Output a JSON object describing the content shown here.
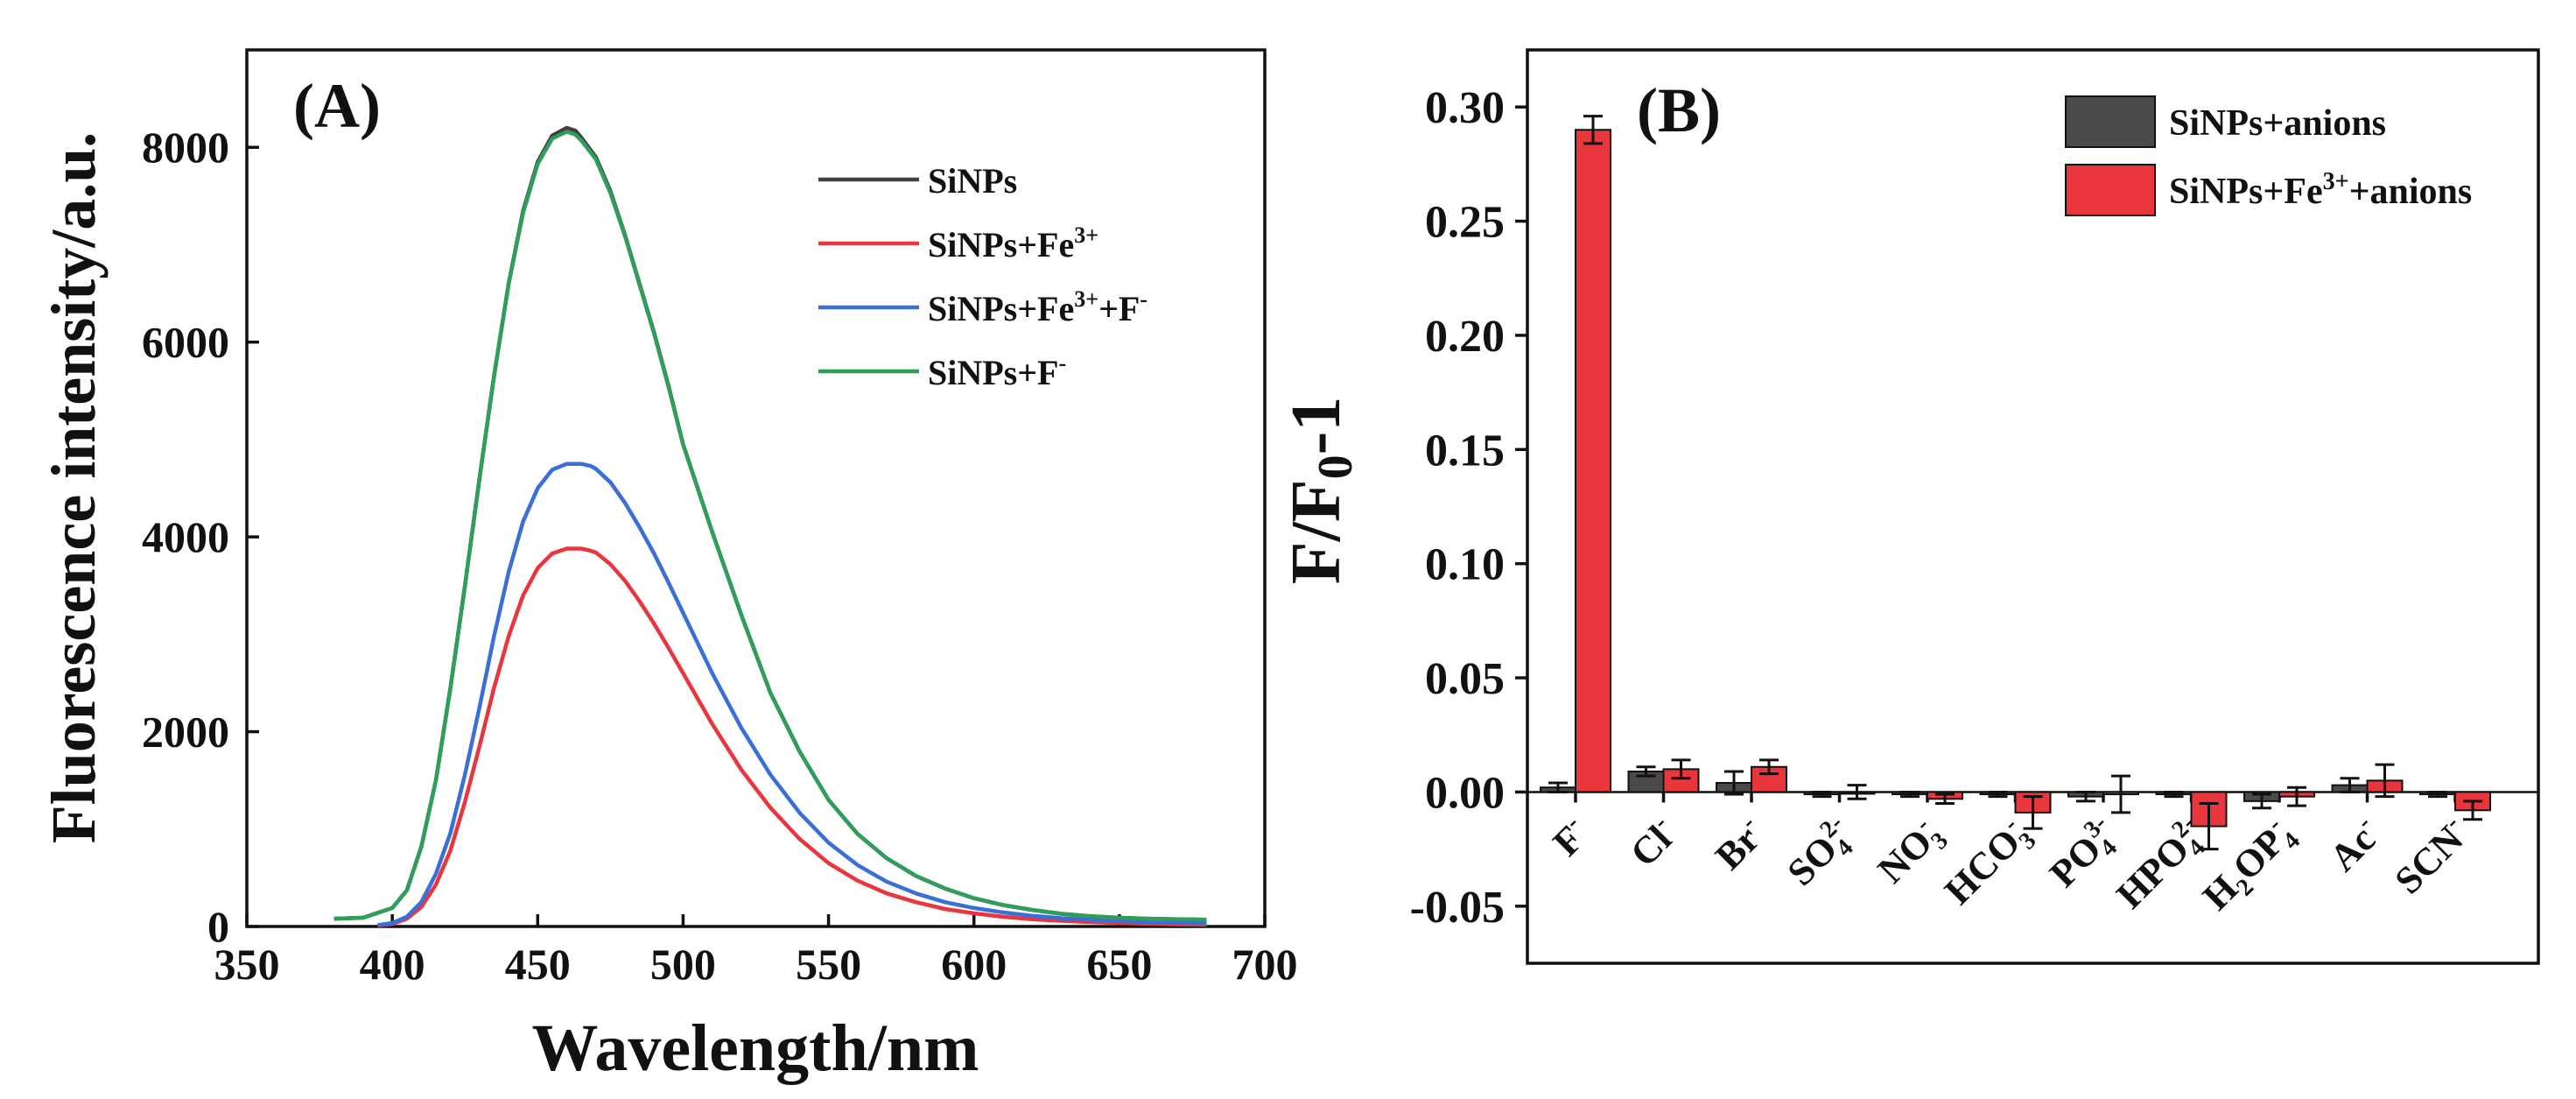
{
  "chart_data": [
    {
      "type": "line",
      "panel_label": "(A)",
      "xlabel": "Wavelength/nm",
      "ylabel": "Fluorescence intensity/a.u.",
      "xlim": [
        350,
        700
      ],
      "ylim": [
        0,
        9000
      ],
      "xticks": [
        "350",
        "400",
        "450",
        "500",
        "550",
        "600",
        "650",
        "700"
      ],
      "yticks": [
        "0",
        "2000",
        "4000",
        "6000",
        "8000"
      ],
      "legend_position": "top-right",
      "series": [
        {
          "name": "SiNPs",
          "legend": {
            "base": "SiNPs",
            "sup": "",
            "rest": ""
          },
          "color": "#404040",
          "x": [
            380,
            390,
            400,
            405,
            410,
            415,
            420,
            425,
            430,
            435,
            440,
            445,
            450,
            455,
            460,
            463,
            465,
            470,
            475,
            480,
            485,
            490,
            495,
            500,
            510,
            520,
            530,
            540,
            550,
            560,
            570,
            580,
            590,
            600,
            610,
            620,
            630,
            640,
            650,
            660,
            670,
            680
          ],
          "y": [
            80,
            90,
            190,
            370,
            820,
            1500,
            2450,
            3500,
            4600,
            5650,
            6600,
            7350,
            7850,
            8120,
            8200,
            8170,
            8100,
            7900,
            7550,
            7100,
            6600,
            6100,
            5550,
            4950,
            4050,
            3200,
            2400,
            1800,
            1300,
            950,
            700,
            520,
            390,
            290,
            220,
            170,
            130,
            105,
            90,
            80,
            75,
            70
          ]
        },
        {
          "name": "SiNPs+Fe3+",
          "legend": {
            "base": "SiNPs+Fe",
            "sup": "3+",
            "rest": ""
          },
          "color": "#e8363c",
          "x": [
            395,
            400,
            405,
            410,
            415,
            420,
            425,
            430,
            435,
            440,
            445,
            450,
            455,
            460,
            465,
            468,
            470,
            475,
            480,
            485,
            490,
            495,
            500,
            510,
            520,
            530,
            540,
            550,
            560,
            570,
            580,
            590,
            600,
            610,
            620,
            630,
            640,
            650,
            660,
            670,
            680
          ],
          "y": [
            10,
            25,
            80,
            200,
            430,
            780,
            1280,
            1850,
            2450,
            2980,
            3400,
            3680,
            3830,
            3880,
            3880,
            3860,
            3840,
            3720,
            3550,
            3340,
            3110,
            2860,
            2600,
            2080,
            1610,
            1220,
            900,
            650,
            470,
            340,
            250,
            180,
            135,
            100,
            75,
            58,
            45,
            35,
            28,
            22,
            18
          ]
        },
        {
          "name": "SiNPs+Fe3++F-",
          "legend": {
            "base": "SiNPs+Fe",
            "sup": "3+",
            "rest": "+F",
            "sup2": "-"
          },
          "color": "#3a6fd8",
          "x": [
            395,
            400,
            405,
            410,
            415,
            420,
            425,
            430,
            435,
            440,
            445,
            450,
            455,
            460,
            465,
            468,
            470,
            475,
            480,
            485,
            490,
            495,
            500,
            510,
            520,
            530,
            540,
            550,
            560,
            570,
            580,
            590,
            600,
            610,
            620,
            630,
            640,
            650,
            660,
            670,
            680
          ],
          "y": [
            15,
            35,
            100,
            250,
            540,
            960,
            1560,
            2250,
            2980,
            3640,
            4160,
            4500,
            4690,
            4750,
            4750,
            4730,
            4700,
            4560,
            4350,
            4100,
            3830,
            3530,
            3220,
            2600,
            2040,
            1560,
            1170,
            860,
            630,
            460,
            340,
            250,
            190,
            145,
            110,
            85,
            68,
            55,
            45,
            38,
            32
          ]
        },
        {
          "name": "SiNPs+F-",
          "legend": {
            "base": "SiNPs+F",
            "sup": "-",
            "rest": ""
          },
          "color": "#2e9e5a",
          "x": [
            380,
            390,
            400,
            405,
            410,
            415,
            420,
            425,
            430,
            435,
            440,
            445,
            450,
            455,
            460,
            463,
            465,
            470,
            475,
            480,
            485,
            490,
            495,
            500,
            510,
            520,
            530,
            540,
            550,
            560,
            570,
            580,
            590,
            600,
            610,
            620,
            630,
            640,
            650,
            660,
            670,
            680
          ],
          "y": [
            80,
            90,
            190,
            370,
            820,
            1500,
            2450,
            3500,
            4600,
            5650,
            6600,
            7330,
            7830,
            8090,
            8160,
            8130,
            8070,
            7880,
            7530,
            7090,
            6590,
            6090,
            5540,
            4950,
            4050,
            3200,
            2400,
            1800,
            1300,
            950,
            700,
            520,
            390,
            290,
            220,
            170,
            130,
            105,
            90,
            80,
            75,
            70
          ]
        }
      ]
    },
    {
      "type": "bar",
      "panel_label": "(B)",
      "ylabel": "F/F0-1",
      "ylabel_parts": {
        "a": "F/F",
        "sub": "0",
        "b": "-1"
      },
      "ylim": [
        -0.075,
        0.325
      ],
      "yticks": [
        "-0.05",
        "0.00",
        "0.05",
        "0.10",
        "0.15",
        "0.20",
        "0.25",
        "0.30"
      ],
      "legend_position": "top-right",
      "categories": [
        {
          "base": "F",
          "sub": "",
          "sup": "-",
          "tail": ""
        },
        {
          "base": "Cl",
          "sub": "",
          "sup": "-",
          "tail": ""
        },
        {
          "base": "Br",
          "sub": "",
          "sup": "-",
          "tail": ""
        },
        {
          "base": "SO",
          "sub": "4",
          "sup": "2-",
          "tail": ""
        },
        {
          "base": "NO",
          "sub": "3",
          "sup": "-",
          "tail": ""
        },
        {
          "base": "HCO",
          "sub": "3",
          "sup": "-",
          "tail": ""
        },
        {
          "base": "PO",
          "sub": "4",
          "sup": "3-",
          "tail": ""
        },
        {
          "base": "HPO",
          "sub": "4",
          "sup": "2-",
          "tail": ""
        },
        {
          "base": "H",
          "sub": "2",
          "sup": "",
          "tail": "OP",
          "sub2": "4",
          "sup2": "-"
        },
        {
          "base": "Ac",
          "sub": "",
          "sup": "-",
          "tail": ""
        },
        {
          "base": "SCN",
          "sub": "",
          "sup": "-",
          "tail": ""
        }
      ],
      "series": [
        {
          "name": "SiNPs+anions",
          "legend": {
            "base": "SiNPs+anions",
            "sup": "",
            "rest": ""
          },
          "color": "#4a4a4a",
          "values": [
            0.002,
            0.009,
            0.004,
            -0.001,
            -0.001,
            -0.001,
            -0.002,
            -0.001,
            -0.004,
            0.003,
            -0.001
          ],
          "errors": [
            0.002,
            0.002,
            0.005,
            0.001,
            0.001,
            0.001,
            0.002,
            0.001,
            0.003,
            0.003,
            0.001
          ]
        },
        {
          "name": "SiNPs+Fe3++anions",
          "legend": {
            "base": "SiNPs+Fe",
            "sup": "3+",
            "rest": "+anions"
          },
          "color": "#e8363c",
          "values": [
            0.29,
            0.01,
            0.011,
            0.0,
            -0.003,
            -0.009,
            -0.001,
            -0.015,
            -0.002,
            0.005,
            -0.008
          ],
          "errors": [
            0.006,
            0.004,
            0.003,
            0.003,
            0.002,
            0.007,
            0.008,
            0.01,
            0.004,
            0.007,
            0.004
          ]
        }
      ]
    }
  ]
}
